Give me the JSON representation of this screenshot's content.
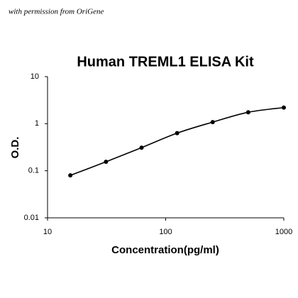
{
  "chart_data": {
    "type": "line",
    "watermark": "with permission from OriGene",
    "title": "Human TREML1 ELISA Kit",
    "x_label": "Concentration(pg/ml)",
    "y_label": "O.D.",
    "x": [
      15.6,
      31.25,
      62.5,
      125,
      250,
      500,
      1000
    ],
    "values": [
      0.08,
      0.155,
      0.31,
      0.63,
      1.08,
      1.75,
      2.2
    ],
    "color": "#000000",
    "xscale": "log",
    "yscale": "log",
    "xlim": [
      10,
      1000
    ],
    "ylim": [
      0.01,
      10
    ],
    "xticks": [
      10,
      100,
      1000
    ],
    "yticks": [
      0.01,
      0.1,
      1,
      10
    ]
  }
}
